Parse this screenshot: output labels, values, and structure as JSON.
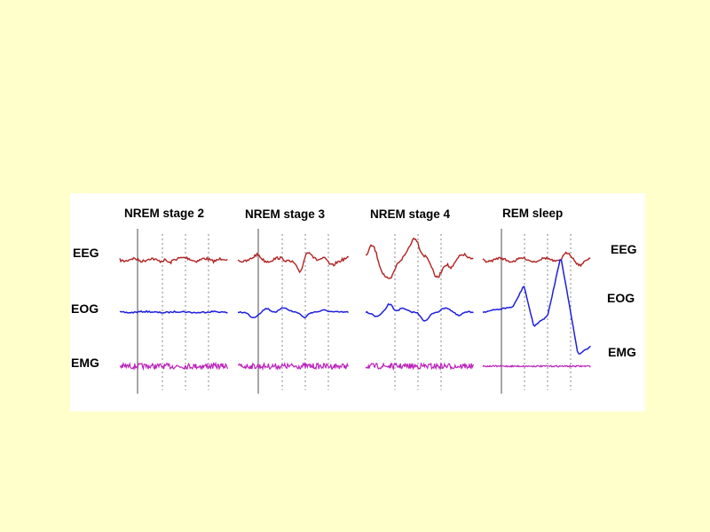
{
  "figure": {
    "columns": [
      {
        "id": "nrem2",
        "title": "NREM stage 2"
      },
      {
        "id": "nrem3",
        "title": "NREM stage 3"
      },
      {
        "id": "nrem4",
        "title": "NREM stage 4"
      },
      {
        "id": "rem",
        "title": "REM sleep"
      }
    ],
    "left_labels": {
      "eeg": "EEG",
      "eog": "EOG",
      "emg": "EMG"
    },
    "right_labels": {
      "eeg": "EEG",
      "eog": "EOG",
      "emg": "EMG"
    },
    "colors": {
      "page_background": "#ffffcc",
      "panel_background": "#ffffff",
      "eeg": "#b22222",
      "eog": "#1f1fdd",
      "emg": "#bb22bb",
      "time_marker": "#888888"
    }
  }
}
